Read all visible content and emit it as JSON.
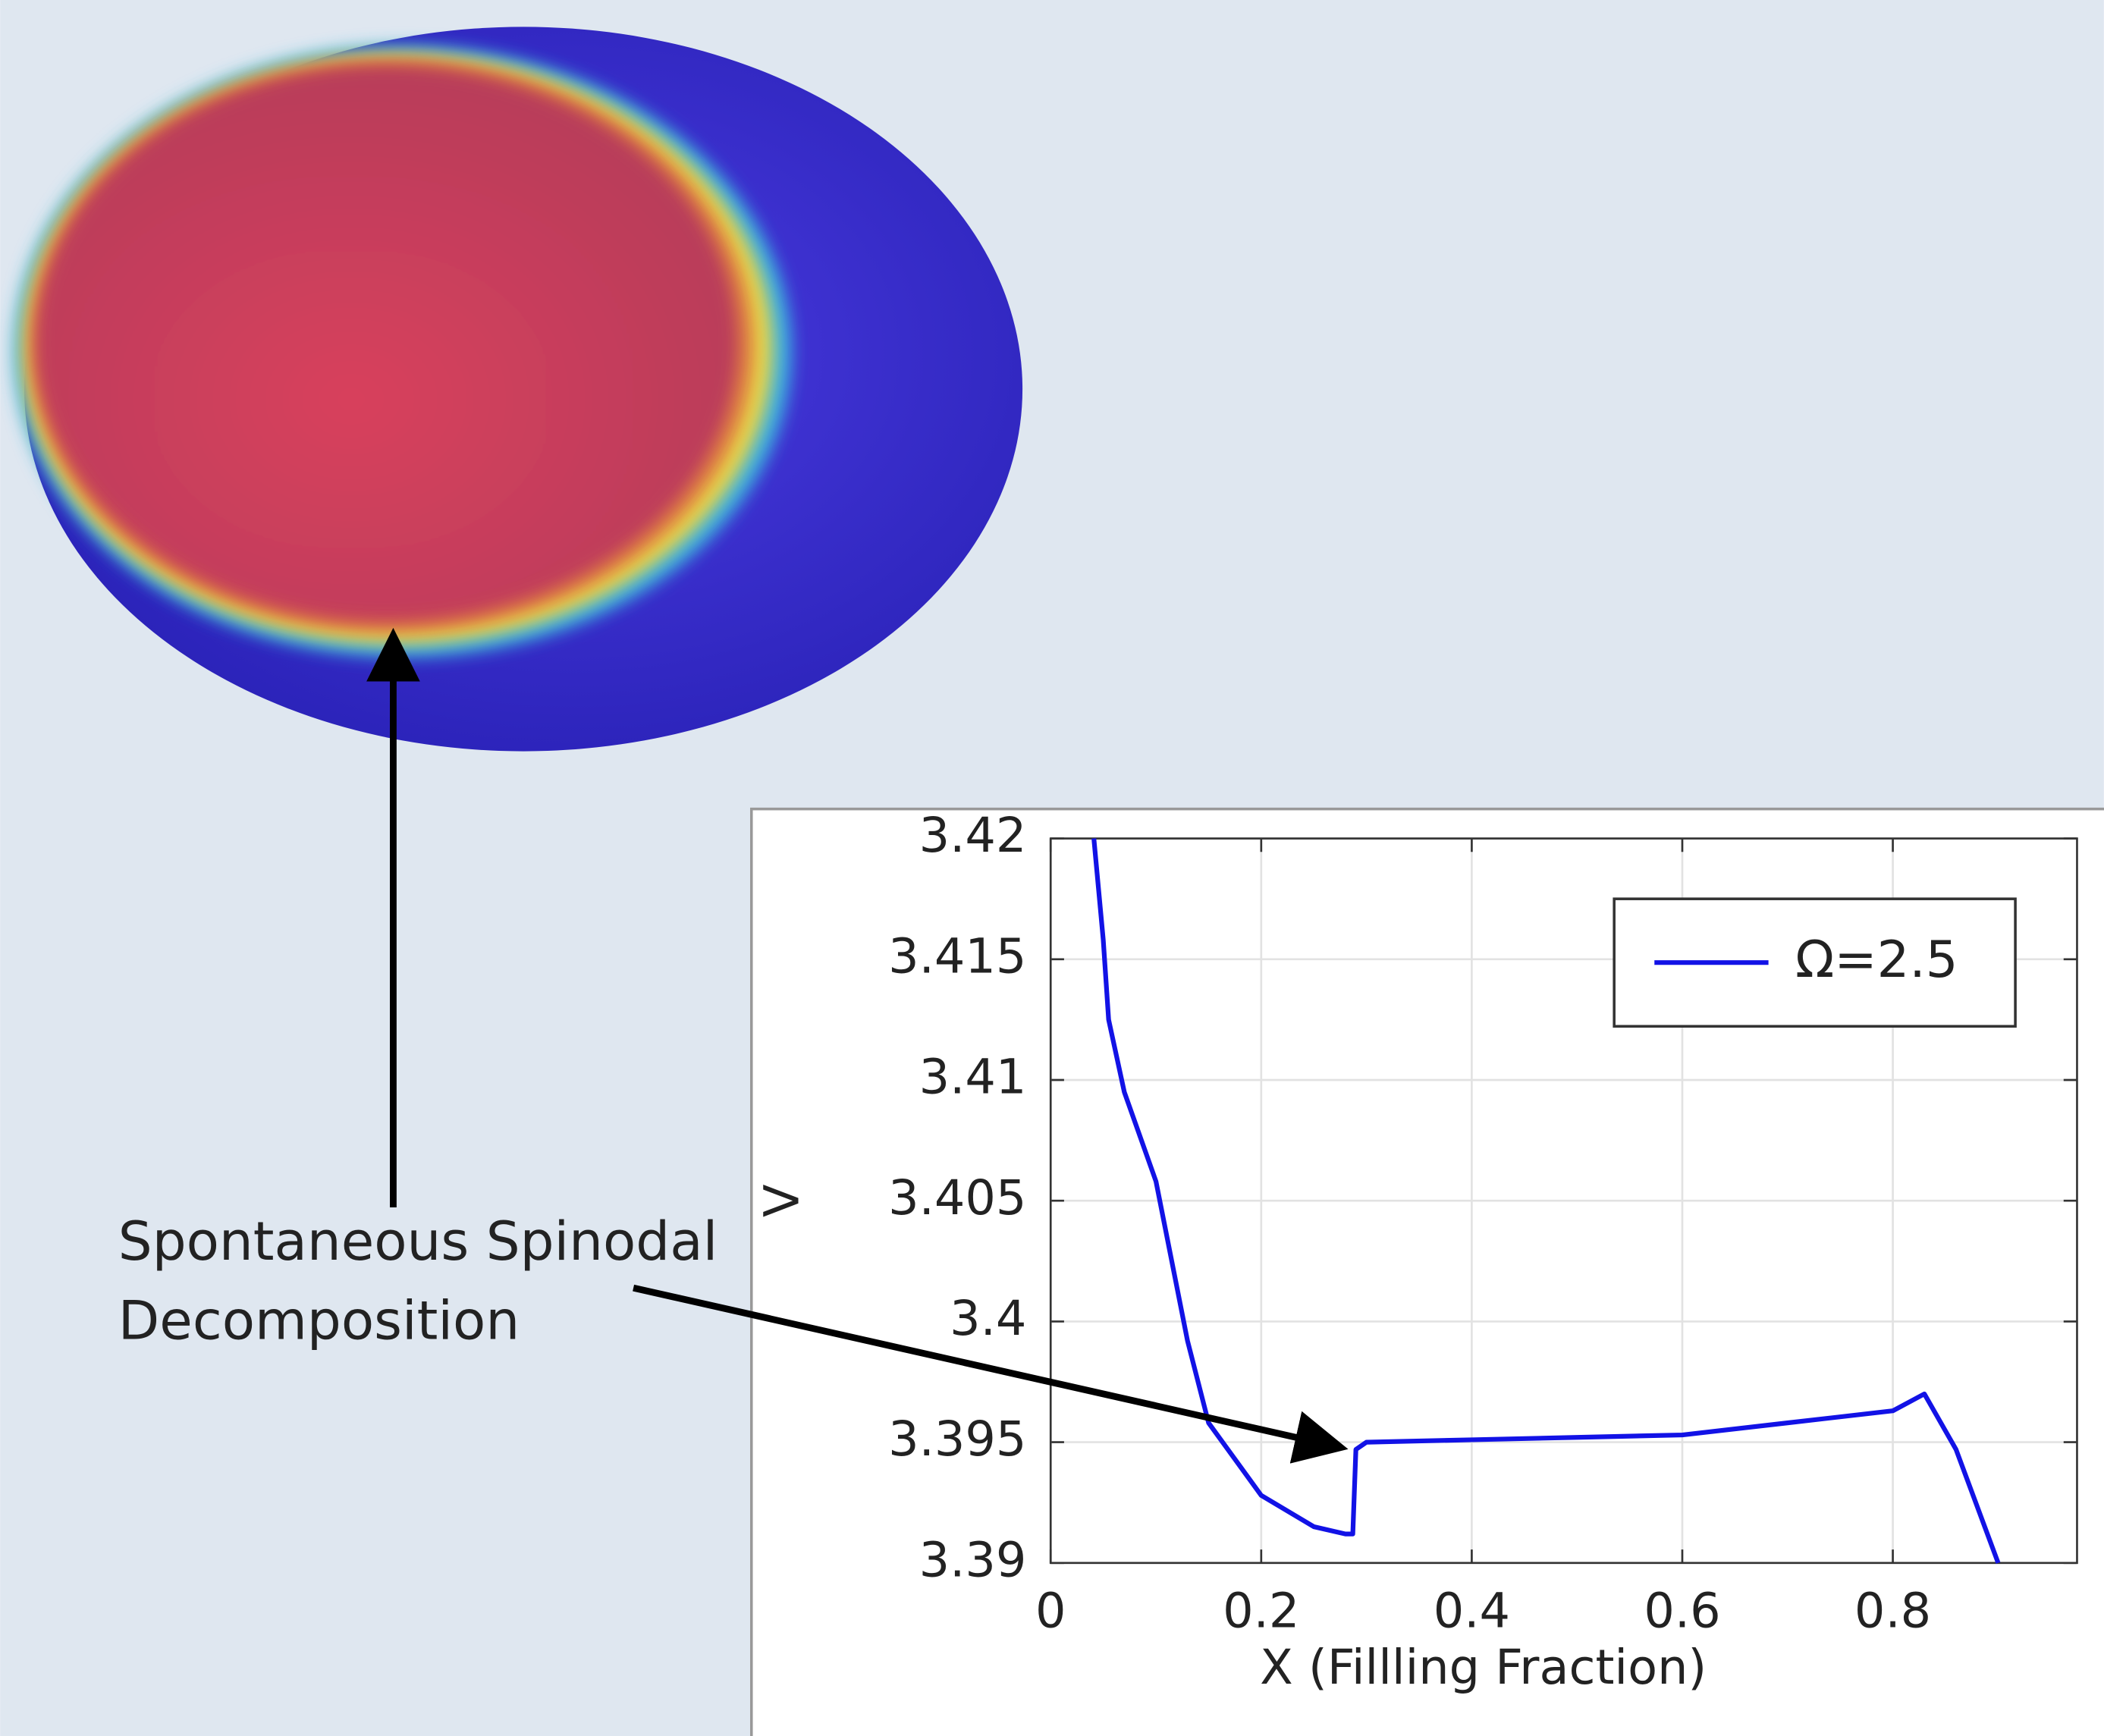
{
  "chart_data": {
    "type": "line",
    "xlabel": "X (Fillling Fraction)",
    "ylabel": "V",
    "annotation": [
      "Spontaneous Spinodal",
      "Decomposition"
    ],
    "x": [
      0.041,
      0.05,
      0.055,
      0.07,
      0.1,
      0.13,
      0.15,
      0.2,
      0.25,
      0.28,
      0.287,
      0.29,
      0.3,
      0.4,
      0.5,
      0.6,
      0.7,
      0.8,
      0.83,
      0.86,
      0.9
    ],
    "series": [
      {
        "name": "Ω=2.5",
        "color": "#1212e6",
        "values": [
          3.42,
          3.4158,
          3.4125,
          3.4095,
          3.4058,
          3.3992,
          3.3958,
          3.3928,
          3.3915,
          3.3912,
          3.3912,
          3.3947,
          3.395,
          3.3951,
          3.3952,
          3.3953,
          3.3958,
          3.3963,
          3.397,
          3.3947,
          3.39
        ]
      }
    ],
    "xlim": [
      0,
      0.975
    ],
    "ylim": [
      3.39,
      3.42
    ],
    "xticks": [
      0,
      0.2,
      0.4,
      0.6,
      0.8
    ],
    "yticks": [
      3.42,
      3.415,
      3.41,
      3.405,
      3.4,
      3.395,
      3.39
    ],
    "grid": true,
    "legend": "upper right"
  }
}
